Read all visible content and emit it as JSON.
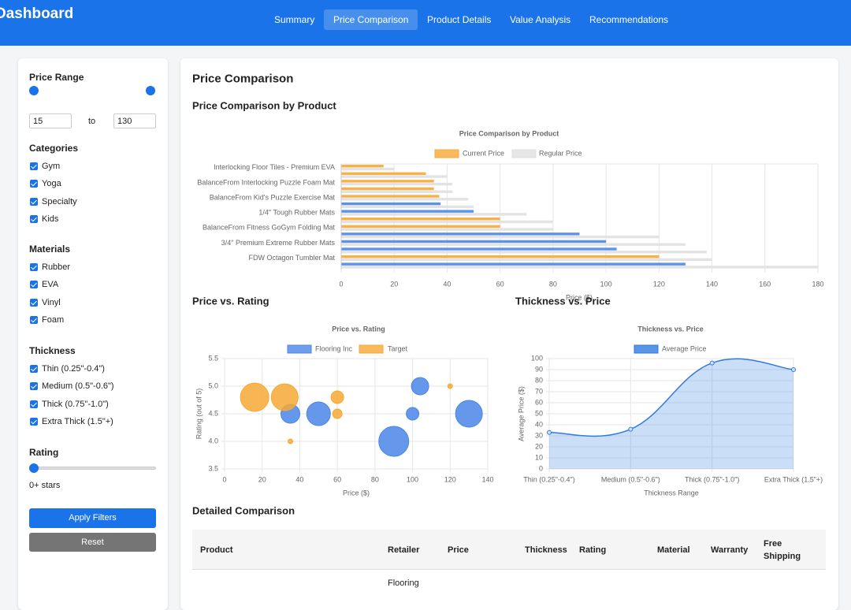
{
  "header": {
    "title": "Dashboard",
    "tabs": [
      "Summary",
      "Price Comparison",
      "Product Details",
      "Value Analysis",
      "Recommendations"
    ],
    "active_tab": 1
  },
  "sidebar": {
    "price_range": {
      "title": "Price Range",
      "min": 15,
      "to": "to",
      "max": 130
    },
    "filters": [
      {
        "title": "Categories",
        "options": [
          "Gym",
          "Yoga",
          "Specialty",
          "Kids"
        ],
        "checked": [
          true,
          true,
          true,
          true
        ]
      },
      {
        "title": "Materials",
        "options": [
          "Rubber",
          "EVA",
          "Vinyl",
          "Foam"
        ],
        "checked": [
          true,
          true,
          true,
          true
        ]
      },
      {
        "title": "Thickness",
        "options": [
          "Thin (0.25\"-0.4\")",
          "Medium (0.5\"-0.6\")",
          "Thick (0.75\"-1.0\")",
          "Extra Thick (1.5\"+)"
        ],
        "checked": [
          true,
          true,
          true,
          true
        ]
      }
    ],
    "rating": {
      "title": "Rating",
      "label": "0+ stars"
    },
    "buttons": [
      "Apply Filters",
      "Reset"
    ]
  },
  "main": {
    "title": "Price Comparison",
    "sections": [
      "Price Comparison by Product",
      "Price vs. Rating",
      "Thickness vs. Price",
      "Detailed Comparison"
    ]
  },
  "chart_data": [
    {
      "type": "bar",
      "orientation": "horizontal",
      "title": "Price Comparison by Product",
      "x_label": "Price ($)",
      "categories": [
        "Interlocking Floor Tiles - Premium EVA",
        null,
        "BalanceFrom Interlocking Puzzle Foam Mat",
        null,
        "BalanceFrom Kid's Puzzle Exercise Mat",
        null,
        "1/4\" Tough Rubber Mats",
        null,
        "BalanceFrom Fitness GoGym Folding Mat",
        null,
        "3/4\" Premium Extreme Rubber Mats",
        null,
        "FDW Octagon Tumbler Mat",
        null
      ],
      "series": [
        {
          "name": "Current Price",
          "color": "#f6a935",
          "point_colors": [
            "#f6a935",
            "#f6a935",
            "#f6a935",
            "#f6a935",
            "#f6a935",
            "#4a86e8",
            "#4a86e8",
            "#f6a935",
            "#f6a935",
            "#4a86e8",
            "#4a86e8",
            "#4a86e8",
            "#f6a935",
            "#4a86e8"
          ],
          "values": [
            16,
            32,
            35,
            35,
            37,
            37.5,
            50,
            60,
            60,
            90,
            100,
            104,
            120,
            130
          ]
        },
        {
          "name": "Regular Price",
          "color": "#e0e0e0",
          "values": [
            20,
            40,
            42,
            42,
            48,
            50,
            70,
            80,
            80,
            120,
            130,
            138,
            140,
            180
          ]
        }
      ],
      "xlim": [
        0,
        180
      ],
      "xticks": [
        0,
        20,
        40,
        60,
        80,
        100,
        120,
        140,
        160,
        180
      ],
      "grid": true
    },
    {
      "type": "bubble",
      "title": "Price vs. Rating",
      "x_label": "Price ($)",
      "y_label": "Rating (out of 5)",
      "series": [
        {
          "name": "Flooring Inc",
          "color": "#4a86e8",
          "x": [
            35,
            50,
            90,
            100,
            104,
            130
          ],
          "values": [
            4.5,
            4.5,
            4.0,
            4.5,
            5.0,
            4.5
          ],
          "sizes": [
            12,
            15,
            19,
            8,
            11,
            17
          ]
        },
        {
          "name": "Target",
          "color": "#f6a935",
          "x": [
            16,
            32,
            35,
            60,
            60,
            120
          ],
          "values": [
            4.8,
            4.8,
            4.0,
            4.8,
            4.5,
            5.0
          ],
          "sizes": [
            18,
            17,
            3,
            8,
            6,
            3
          ]
        }
      ],
      "xlim": [
        0,
        140
      ],
      "xticks": [
        0,
        20,
        40,
        60,
        80,
        100,
        120,
        140
      ],
      "ylim": [
        3.5,
        5.5
      ],
      "yticks": [
        3.5,
        {
          "value": 4,
          "label": "4.0"
        },
        4.5,
        {
          "value": 5,
          "label": "5.0"
        },
        5.5
      ],
      "grid": true
    },
    {
      "type": "area",
      "title": "Thickness vs. Price",
      "x_label": "Thickness Range",
      "y_label": "Average Price ($)",
      "categories": [
        "Thin (0.25\"-0.4\")",
        "Medium (0.5\"-0.6\")",
        "Thick (0.75\"-1.0\")",
        "Extra Thick (1.5\"+)"
      ],
      "series": [
        {
          "name": "Average Price",
          "color": "#2f7be0",
          "values": [
            33,
            36,
            96,
            90
          ]
        }
      ],
      "ylim": [
        0,
        100
      ],
      "yticks": [
        0,
        10,
        20,
        30,
        40,
        50,
        60,
        70,
        80,
        90,
        100
      ],
      "grid": true
    }
  ],
  "table": {
    "headers": [
      "Product",
      "Retailer",
      "Price",
      "Thickness",
      "Rating",
      "Material",
      "Warranty",
      "Free Shipping"
    ],
    "rows": [
      {
        "retailer": "Flooring"
      }
    ]
  }
}
